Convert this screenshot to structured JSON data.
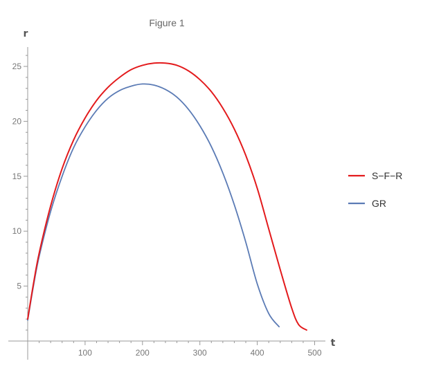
{
  "chart_data": {
    "type": "line",
    "title": "Figure 1",
    "xlabel": "t",
    "ylabel": "r",
    "xlim": [
      0,
      500
    ],
    "ylim": [
      0,
      26
    ],
    "x_ticks_major": [
      100,
      200,
      300,
      400,
      500
    ],
    "y_ticks_major": [
      5,
      10,
      15,
      20,
      25
    ],
    "x_ticks_minor_step": 20,
    "y_ticks_minor_step": 1,
    "grid": false,
    "legend_placement": "right",
    "series": [
      {
        "name": "S−F−R",
        "color": "#e31a1c",
        "points": [
          [
            0,
            2.0
          ],
          [
            10,
            5.2
          ],
          [
            20,
            8.0
          ],
          [
            40,
            12.3
          ],
          [
            60,
            15.7
          ],
          [
            80,
            18.3
          ],
          [
            100,
            20.3
          ],
          [
            120,
            21.9
          ],
          [
            140,
            23.1
          ],
          [
            160,
            24.0
          ],
          [
            180,
            24.7
          ],
          [
            200,
            25.1
          ],
          [
            220,
            25.3
          ],
          [
            240,
            25.3
          ],
          [
            260,
            25.1
          ],
          [
            280,
            24.6
          ],
          [
            300,
            23.8
          ],
          [
            320,
            22.7
          ],
          [
            340,
            21.2
          ],
          [
            360,
            19.3
          ],
          [
            380,
            16.9
          ],
          [
            400,
            13.9
          ],
          [
            420,
            10.2
          ],
          [
            440,
            6.5
          ],
          [
            460,
            3.0
          ],
          [
            472,
            1.5
          ],
          [
            486,
            1.0
          ]
        ]
      },
      {
        "name": "GR",
        "color": "#5b7bb5",
        "points": [
          [
            0,
            1.9
          ],
          [
            10,
            5.0
          ],
          [
            20,
            7.7
          ],
          [
            40,
            11.8
          ],
          [
            60,
            15.0
          ],
          [
            80,
            17.6
          ],
          [
            100,
            19.5
          ],
          [
            120,
            21.0
          ],
          [
            140,
            22.1
          ],
          [
            160,
            22.8
          ],
          [
            180,
            23.2
          ],
          [
            200,
            23.4
          ],
          [
            220,
            23.3
          ],
          [
            240,
            22.9
          ],
          [
            260,
            22.2
          ],
          [
            280,
            21.1
          ],
          [
            300,
            19.6
          ],
          [
            320,
            17.7
          ],
          [
            340,
            15.3
          ],
          [
            360,
            12.4
          ],
          [
            380,
            9.0
          ],
          [
            400,
            5.2
          ],
          [
            420,
            2.5
          ],
          [
            438,
            1.3
          ]
        ]
      }
    ]
  }
}
